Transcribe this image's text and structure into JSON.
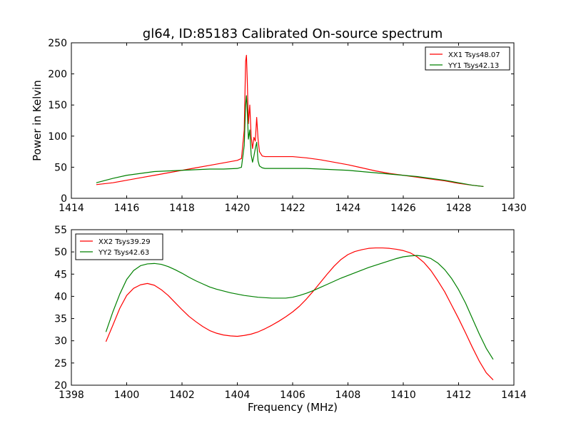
{
  "figure": {
    "title": "gl64, ID:85183 Calibrated On-source spectrum"
  },
  "chart_data": [
    {
      "type": "line",
      "title": "gl64, ID:85183 Calibrated On-source spectrum",
      "xlabel": "",
      "ylabel": "Power in Kelvin",
      "xlim": [
        1414,
        1430
      ],
      "ylim": [
        0,
        250
      ],
      "xticks": [
        1414,
        1416,
        1418,
        1420,
        1422,
        1424,
        1426,
        1428,
        1430
      ],
      "yticks": [
        0,
        50,
        100,
        150,
        200,
        250
      ],
      "grid": false,
      "legend_position": "top-right",
      "series": [
        {
          "name": "XX1 Tsys48.07",
          "color": "#ff0000",
          "x": [
            1414.9,
            1415.5,
            1416.0,
            1416.5,
            1417.0,
            1417.5,
            1418.0,
            1418.5,
            1419.0,
            1419.5,
            1420.0,
            1420.15,
            1420.25,
            1420.3,
            1420.33,
            1420.36,
            1420.4,
            1420.45,
            1420.5,
            1420.55,
            1420.6,
            1420.65,
            1420.7,
            1420.75,
            1420.8,
            1420.9,
            1421.0,
            1421.5,
            1422.0,
            1422.5,
            1423.0,
            1423.5,
            1424.0,
            1424.5,
            1425.0,
            1425.5,
            1426.0,
            1426.5,
            1427.0,
            1427.5,
            1428.0,
            1428.5,
            1428.9
          ],
          "values": [
            22,
            25,
            29,
            33,
            37,
            41,
            45,
            49,
            53,
            57,
            61,
            64,
            110,
            220,
            230,
            190,
            120,
            150,
            100,
            80,
            98,
            92,
            130,
            95,
            75,
            68,
            67,
            67,
            67,
            65,
            62,
            58,
            54,
            49,
            44,
            40,
            37,
            34,
            31,
            28,
            24,
            21,
            19
          ]
        },
        {
          "name": "YY1 Tsys42.13",
          "color": "#008000",
          "x": [
            1414.9,
            1415.5,
            1416.0,
            1416.5,
            1417.0,
            1417.5,
            1418.0,
            1418.5,
            1419.0,
            1419.5,
            1420.0,
            1420.15,
            1420.25,
            1420.3,
            1420.33,
            1420.36,
            1420.4,
            1420.45,
            1420.5,
            1420.55,
            1420.6,
            1420.65,
            1420.7,
            1420.75,
            1420.8,
            1420.9,
            1421.0,
            1421.5,
            1422.0,
            1422.5,
            1423.0,
            1423.5,
            1424.0,
            1424.5,
            1425.0,
            1425.5,
            1426.0,
            1426.5,
            1427.0,
            1427.5,
            1428.0,
            1428.5,
            1428.9
          ],
          "values": [
            25,
            32,
            37,
            40,
            43,
            44,
            45,
            46,
            47,
            47,
            48,
            50,
            85,
            150,
            165,
            140,
            95,
            110,
            70,
            58,
            68,
            80,
            90,
            60,
            52,
            49,
            48,
            48,
            48,
            48,
            47,
            46,
            45,
            43,
            41,
            39,
            37,
            35,
            32,
            29,
            25,
            21,
            19
          ]
        }
      ]
    },
    {
      "type": "line",
      "title": "",
      "xlabel": "Frequency (MHz)",
      "ylabel": "",
      "xlim": [
        1398,
        1414
      ],
      "ylim": [
        20,
        55
      ],
      "xticks": [
        1398,
        1400,
        1402,
        1404,
        1406,
        1408,
        1410,
        1412,
        1414
      ],
      "yticks": [
        20,
        25,
        30,
        35,
        40,
        45,
        50,
        55
      ],
      "grid": false,
      "legend_position": "top-left",
      "series": [
        {
          "name": "XX2 Tsys39.29",
          "color": "#ff0000",
          "x": [
            1399.25,
            1399.5,
            1399.75,
            1400.0,
            1400.25,
            1400.5,
            1400.75,
            1401.0,
            1401.25,
            1401.5,
            1401.75,
            1402.0,
            1402.25,
            1402.5,
            1402.75,
            1403.0,
            1403.25,
            1403.5,
            1403.75,
            1404.0,
            1404.25,
            1404.5,
            1404.75,
            1405.0,
            1405.25,
            1405.5,
            1405.75,
            1406.0,
            1406.25,
            1406.5,
            1406.75,
            1407.0,
            1407.25,
            1407.5,
            1407.75,
            1408.0,
            1408.25,
            1408.5,
            1408.75,
            1409.0,
            1409.25,
            1409.5,
            1409.75,
            1410.0,
            1410.25,
            1410.5,
            1410.75,
            1411.0,
            1411.25,
            1411.5,
            1411.75,
            1412.0,
            1412.25,
            1412.5,
            1412.75,
            1413.0,
            1413.25
          ],
          "values": [
            29.8,
            33.5,
            37.3,
            40.2,
            41.8,
            42.6,
            42.9,
            42.5,
            41.5,
            40.2,
            38.6,
            37.0,
            35.5,
            34.3,
            33.2,
            32.3,
            31.7,
            31.3,
            31.1,
            31.0,
            31.2,
            31.5,
            32.0,
            32.7,
            33.5,
            34.4,
            35.4,
            36.5,
            37.8,
            39.4,
            41.2,
            43.1,
            45.0,
            46.8,
            48.3,
            49.4,
            50.1,
            50.5,
            50.8,
            50.9,
            50.9,
            50.8,
            50.6,
            50.3,
            49.8,
            48.9,
            47.6,
            45.8,
            43.5,
            41.0,
            38.0,
            35.0,
            31.8,
            28.5,
            25.4,
            22.8,
            21.2
          ]
        },
        {
          "name": "YY2 Tsys42.63",
          "color": "#008000",
          "x": [
            1399.25,
            1399.5,
            1399.75,
            1400.0,
            1400.25,
            1400.5,
            1400.75,
            1401.0,
            1401.25,
            1401.5,
            1401.75,
            1402.0,
            1402.25,
            1402.5,
            1402.75,
            1403.0,
            1403.25,
            1403.5,
            1403.75,
            1404.0,
            1404.25,
            1404.5,
            1404.75,
            1405.0,
            1405.25,
            1405.5,
            1405.75,
            1406.0,
            1406.25,
            1406.5,
            1406.75,
            1407.0,
            1407.25,
            1407.5,
            1407.75,
            1408.0,
            1408.25,
            1408.5,
            1408.75,
            1409.0,
            1409.25,
            1409.5,
            1409.75,
            1410.0,
            1410.25,
            1410.5,
            1410.75,
            1411.0,
            1411.25,
            1411.5,
            1411.75,
            1412.0,
            1412.25,
            1412.5,
            1412.75,
            1413.0,
            1413.25
          ],
          "values": [
            32.0,
            36.5,
            40.5,
            43.8,
            45.8,
            46.9,
            47.3,
            47.4,
            47.2,
            46.7,
            46.0,
            45.2,
            44.3,
            43.5,
            42.8,
            42.1,
            41.6,
            41.2,
            40.8,
            40.5,
            40.2,
            40.0,
            39.8,
            39.7,
            39.6,
            39.6,
            39.6,
            39.8,
            40.2,
            40.7,
            41.3,
            42.0,
            42.7,
            43.4,
            44.1,
            44.7,
            45.3,
            45.9,
            46.5,
            47.0,
            47.5,
            48.0,
            48.5,
            48.9,
            49.1,
            49.2,
            49.0,
            48.5,
            47.5,
            46.0,
            44.0,
            41.5,
            38.5,
            35.0,
            31.5,
            28.3,
            25.8
          ]
        }
      ]
    }
  ]
}
